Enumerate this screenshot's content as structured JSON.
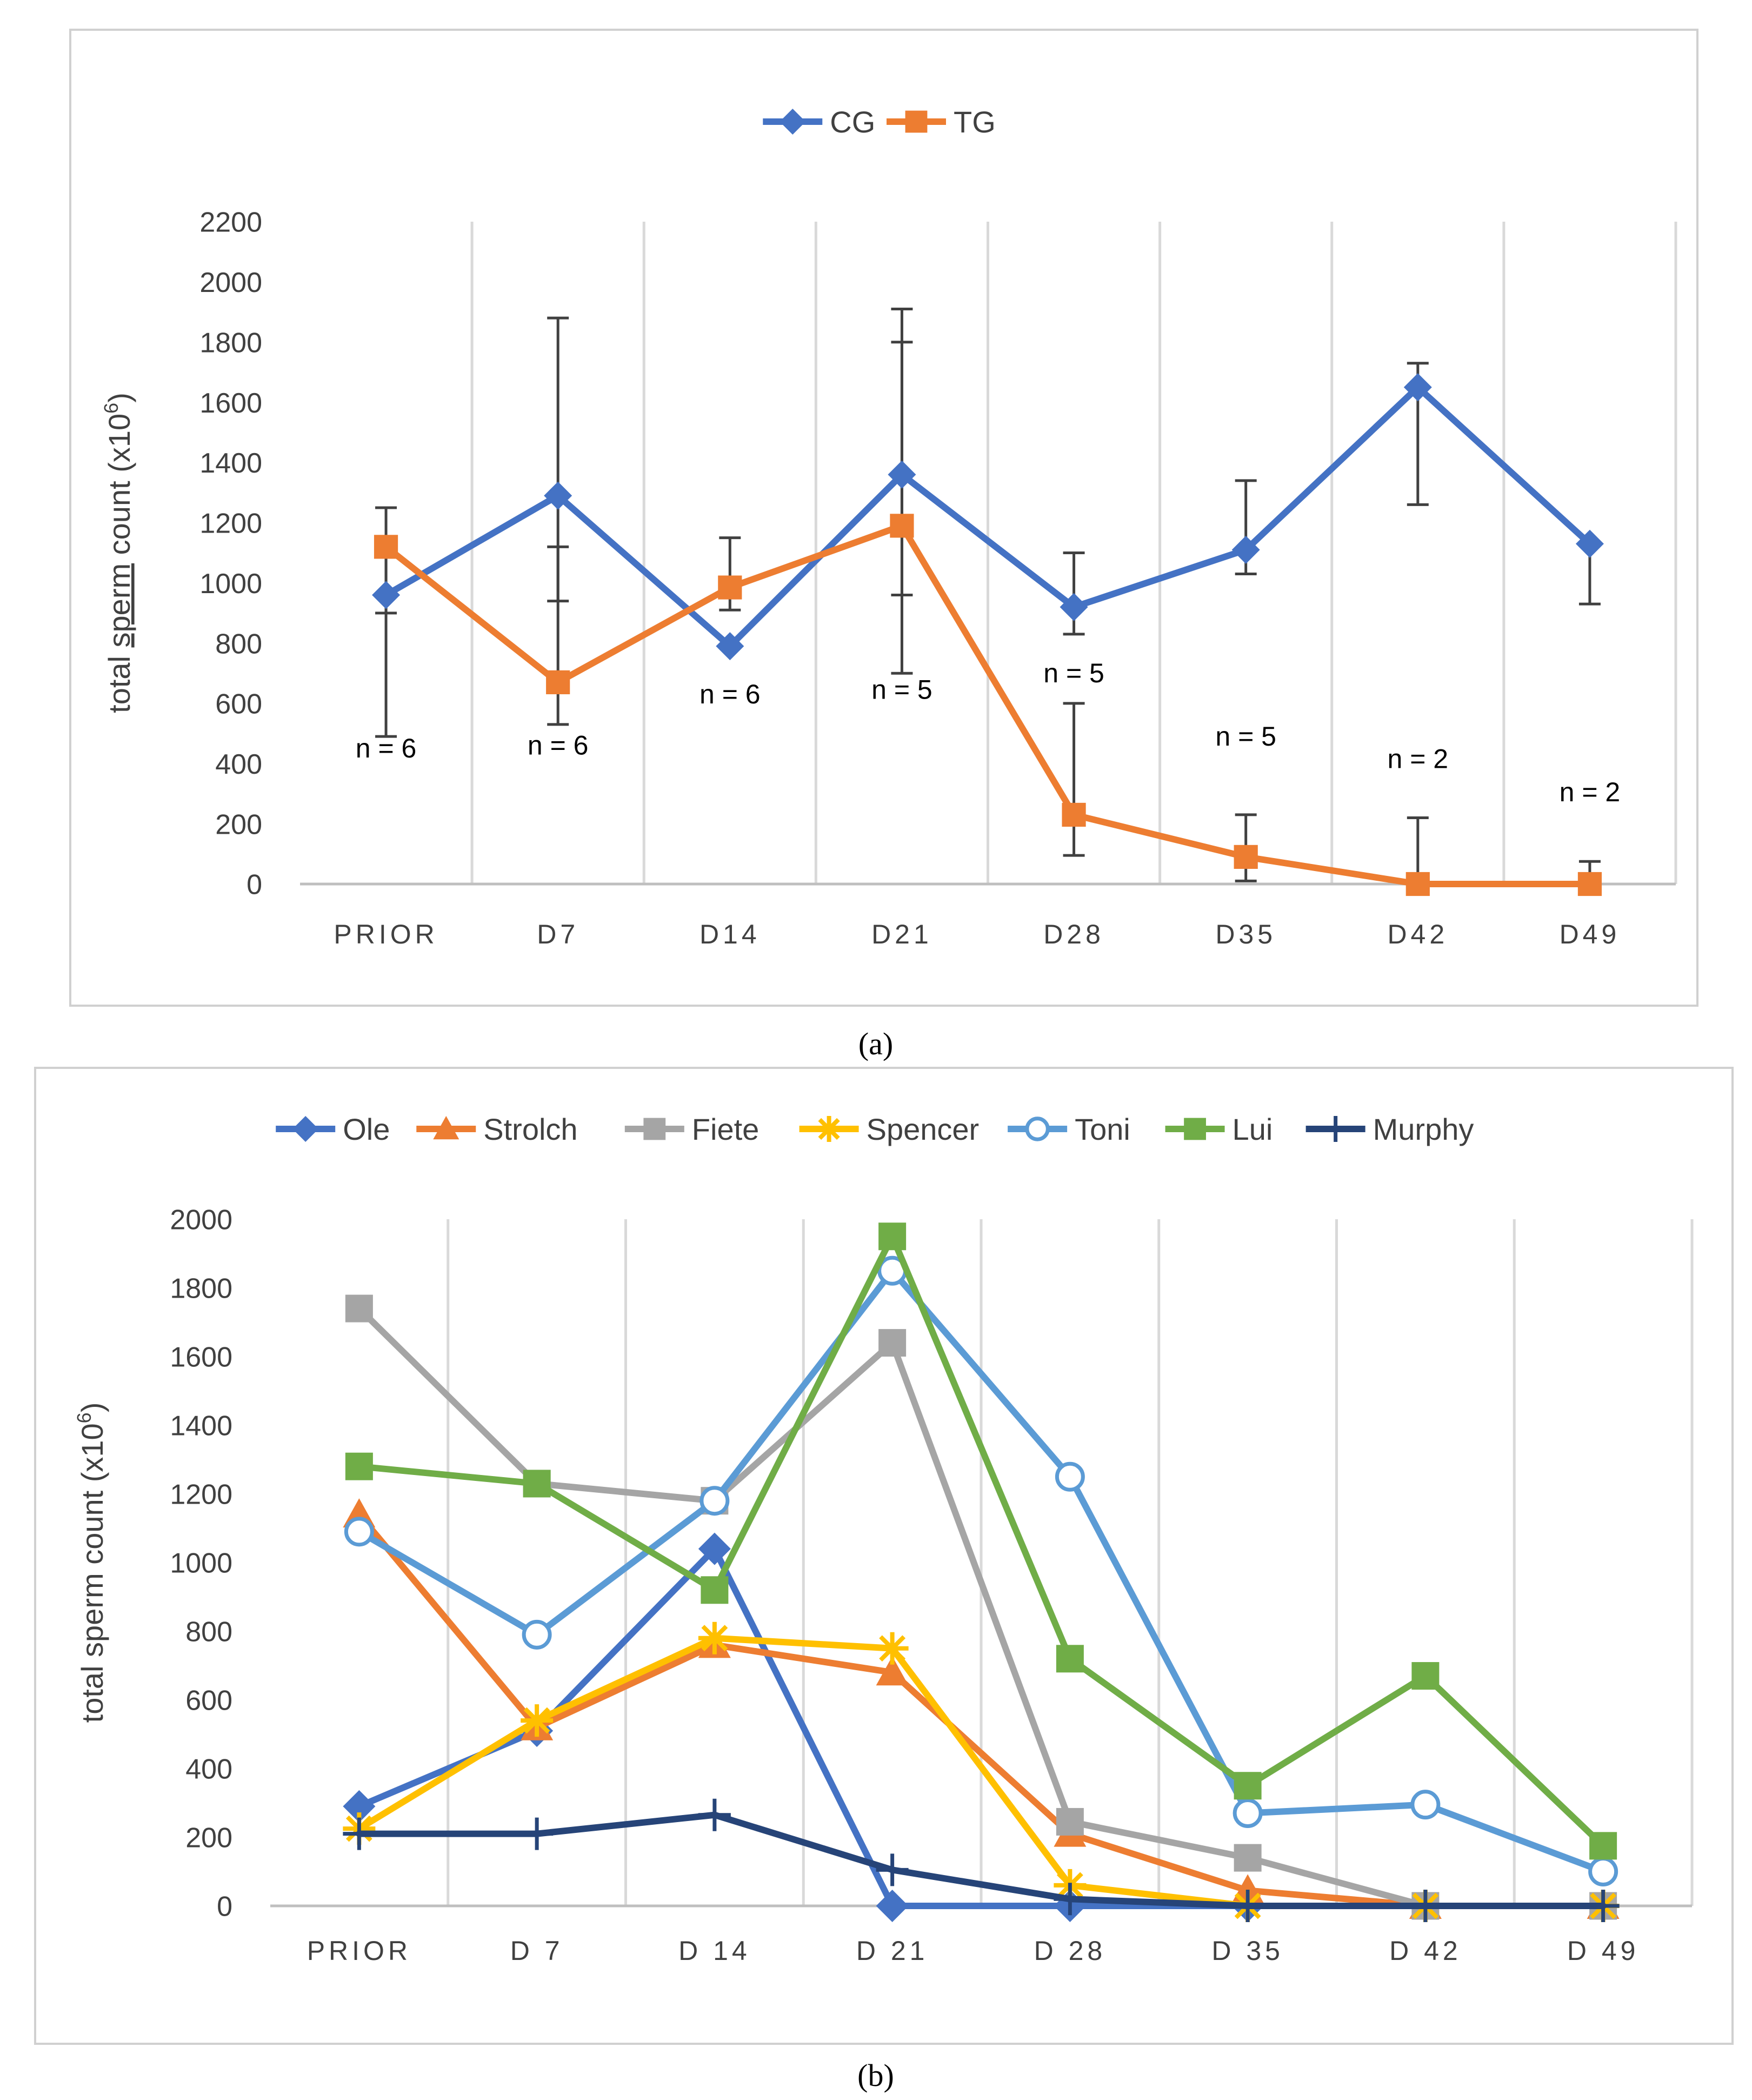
{
  "captions": {
    "a": "(a)",
    "b": "(b)"
  },
  "chart_data": [
    {
      "id": "a",
      "type": "line",
      "ylabel": "total sperm count (x10⁶)",
      "ylabel_parts": {
        "base": "total ",
        "underlined": "sperm",
        "rest": " count (x10",
        "sup": "6",
        "close": ")"
      },
      "ylim": [
        0,
        2200
      ],
      "yticks": [
        "0",
        "200",
        "400",
        "600",
        "800",
        "1000",
        "1200",
        "1400",
        "1600",
        "1800",
        "2000",
        "2200"
      ],
      "categories": [
        "PRIOR",
        "D7",
        "D14",
        "D21",
        "D28",
        "D35",
        "D42",
        "D49"
      ],
      "legend_position": "top-center",
      "series": [
        {
          "name": "CG",
          "color": "#4472C4",
          "marker": "diamond",
          "values": [
            960,
            1290,
            790,
            1360,
            920,
            1110,
            1650,
            1130
          ],
          "err_low": [
            490,
            940,
            910,
            700,
            830,
            1030,
            1260,
            930
          ],
          "err_high": [
            1250,
            1880,
            1150,
            1800,
            1100,
            1340,
            1730,
            1130
          ]
        },
        {
          "name": "TG",
          "color": "#ED7D31",
          "marker": "square",
          "values": [
            1120,
            670,
            985,
            1190,
            230,
            90,
            0,
            0
          ],
          "err_low": [
            900,
            530,
            985,
            960,
            95,
            10,
            0,
            0
          ],
          "err_high": [
            1120,
            1120,
            985,
            1910,
            600,
            230,
            220,
            75
          ]
        }
      ],
      "annotations": [
        {
          "text": "n = 6",
          "category": 0,
          "value": 420
        },
        {
          "text": "n = 6",
          "category": 1,
          "value": 430
        },
        {
          "text": "n = 6",
          "category": 2,
          "value": 600
        },
        {
          "text": "n = 5",
          "category": 3,
          "value": 615
        },
        {
          "text": "n = 5",
          "category": 4,
          "value": 670
        },
        {
          "text": "n = 5",
          "category": 5,
          "value": 460
        },
        {
          "text": "n = 2",
          "category": 6,
          "value": 385
        },
        {
          "text": "n = 2",
          "category": 7,
          "value": 275
        }
      ]
    },
    {
      "id": "b",
      "type": "line",
      "ylabel": "total sperm count (x10⁶)",
      "ylabel_parts": {
        "base": "total sperm count (x10",
        "sup": "6",
        "close": ")"
      },
      "ylim": [
        0,
        2000
      ],
      "yticks": [
        "0",
        "200",
        "400",
        "600",
        "800",
        "1000",
        "1200",
        "1400",
        "1600",
        "1800",
        "2000"
      ],
      "categories": [
        "PRIOR",
        "D 7",
        "D 14",
        "D 21",
        "D 28",
        "D 35",
        "D 42",
        "D 49"
      ],
      "legend_position": "top-center",
      "series": [
        {
          "name": "Ole",
          "color": "#4472C4",
          "marker": "diamond",
          "values": [
            290,
            510,
            1040,
            0,
            0,
            0,
            0,
            0
          ]
        },
        {
          "name": "Strolch",
          "color": "#ED7D31",
          "marker": "triangle",
          "values": [
            1140,
            520,
            760,
            680,
            210,
            45,
            0,
            0
          ]
        },
        {
          "name": "Fiete",
          "color": "#A5A5A5",
          "marker": "square",
          "values": [
            1740,
            1230,
            1180,
            1640,
            245,
            140,
            0,
            0
          ]
        },
        {
          "name": "Spencer",
          "color": "#FFC000",
          "marker": "star",
          "values": [
            225,
            540,
            780,
            750,
            60,
            0,
            0,
            0
          ]
        },
        {
          "name": "Toni",
          "color": "#5B9BD5",
          "marker": "circle",
          "values": [
            1090,
            790,
            1180,
            1850,
            1250,
            270,
            295,
            100
          ]
        },
        {
          "name": "Lui",
          "color": "#70AD47",
          "marker": "square",
          "values": [
            1280,
            1230,
            920,
            1950,
            720,
            350,
            670,
            175
          ]
        },
        {
          "name": "Murphy",
          "color": "#264478",
          "marker": "plus",
          "values": [
            210,
            210,
            265,
            105,
            20,
            0,
            0,
            0
          ]
        }
      ]
    }
  ]
}
